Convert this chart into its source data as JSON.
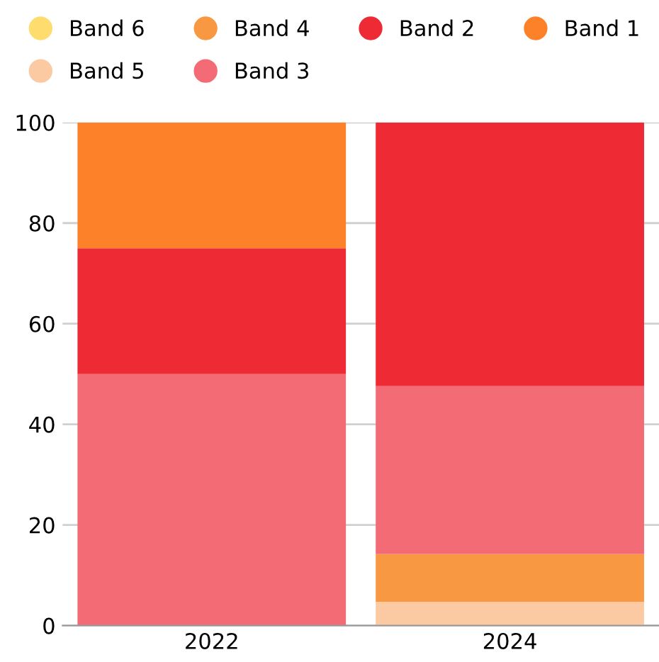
{
  "chart_data": {
    "type": "bar",
    "stacked": true,
    "categories": [
      "2022",
      "2024"
    ],
    "series": [
      {
        "name": "Band 6",
        "color": "#fedd6e",
        "values": [
          0,
          0
        ]
      },
      {
        "name": "Band 5",
        "color": "#fccaa2",
        "values": [
          0,
          4.7
        ]
      },
      {
        "name": "Band 4",
        "color": "#f89843",
        "values": [
          0,
          9.5
        ]
      },
      {
        "name": "Band 3",
        "color": "#f36b74",
        "values": [
          50,
          33.4
        ]
      },
      {
        "name": "Band 2",
        "color": "#ee2a34",
        "values": [
          25,
          52.4
        ]
      },
      {
        "name": "Band 1",
        "color": "#fd8128",
        "values": [
          25,
          0
        ]
      }
    ],
    "ylim": [
      0,
      100
    ],
    "yticks": [
      0,
      20,
      40,
      60,
      80,
      100
    ],
    "grid": "y",
    "legend": "top"
  }
}
